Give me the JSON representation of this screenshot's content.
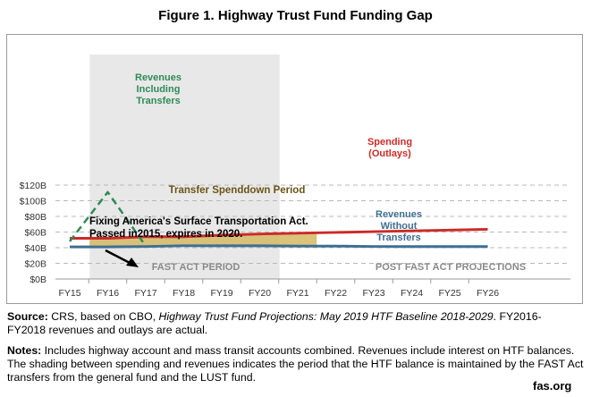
{
  "title": "Figure 1. Highway Trust Fund Funding Gap",
  "chart_data": {
    "type": "line",
    "categories": [
      "FY15",
      "FY16",
      "FY17",
      "FY18",
      "FY19",
      "FY20",
      "FY21",
      "FY22",
      "FY23",
      "FY24",
      "FY25",
      "FY26"
    ],
    "y_ticks": [
      "$0B",
      "$20B",
      "$40B",
      "$60B",
      "$80B",
      "$100B",
      "$120B"
    ],
    "ylim": [
      0,
      120
    ],
    "grid": "horizontal dashed",
    "series": [
      {
        "name": "Spending (Outlays)",
        "color": "#cc2a27",
        "values": [
          52,
          52,
          54,
          54,
          56,
          57.5,
          58.5,
          59.5,
          60.5,
          61.5,
          62.5,
          63.5
        ]
      },
      {
        "name": "Revenues Without Transfers",
        "color": "#3f6e92",
        "values": [
          41,
          41,
          41.5,
          42.5,
          42.5,
          42.5,
          42,
          42,
          41.5,
          41.5,
          41.5,
          41.5
        ]
      },
      {
        "name": "Revenues Including Transfers",
        "color": "#2e8b57",
        "style": "dashed",
        "values": [
          48,
          111,
          42,
          null,
          null,
          null,
          null,
          null,
          null,
          null,
          null,
          null
        ]
      }
    ],
    "shaded_period": {
      "label": "FAST ACT PERIOD",
      "from": "FY16",
      "to": "FY20"
    },
    "transfer_band": {
      "label": "Transfer Spenddown Period",
      "from": "FY16",
      "to": "FY21",
      "color": "#d4b864"
    },
    "annotations": {
      "spending_line1": "Spending",
      "spending_line2": "(Outlays)",
      "rev_incl_line1": "Revenues",
      "rev_incl_line2": "Including",
      "rev_incl_line3": "Transfers",
      "rev_wo_line1": "Revenues",
      "rev_wo_line2": "Without",
      "rev_wo_line3": "Transfers",
      "fast_act_line1": "Fixing America's Surface Transportation Act.",
      "fast_act_line2": "Passed in2015, expires in 2020.",
      "fast_period": "FAST ACT PERIOD",
      "post_period": "POST FAST ACT PROJECTIONS",
      "transfer": "Transfer Spenddown Period"
    }
  },
  "source": {
    "label": "Source:",
    "text1": " CRS, based on CBO, ",
    "italic": "Highway Trust Fund Projections: May 2019 HTF Baseline 2018-2029",
    "text2": ". FY2016-FY2018 revenues and outlays are actual."
  },
  "notes": {
    "label": "Notes:",
    "text": " Includes highway account and mass transit accounts combined. Revenues include interest on HTF balances. The shading between spending and revenues indicates the period that the HTF balance is maintained by the FAST Act transfers from the general fund and the LUST fund."
  },
  "brand": "fas.org"
}
